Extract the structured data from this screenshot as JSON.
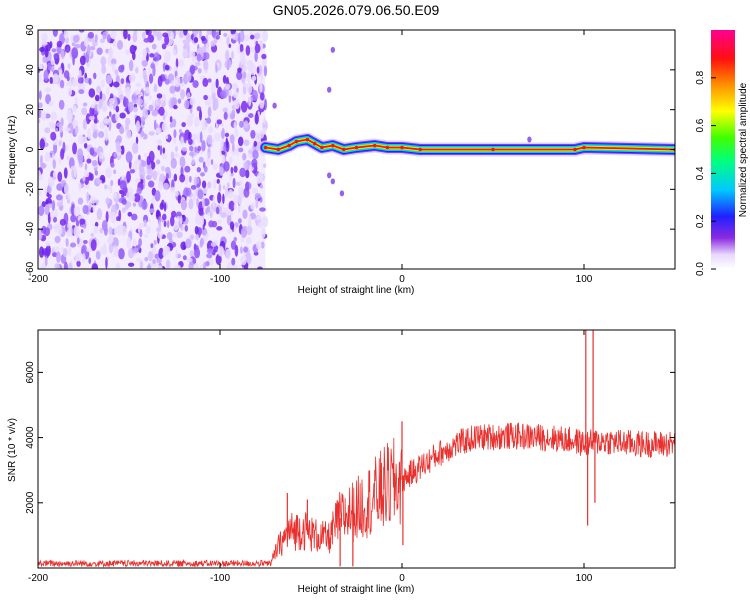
{
  "title": "GN05.2026.079.06.50.E09",
  "chart_data": [
    {
      "type": "heatmap",
      "xlabel": "Height of straight line (km)",
      "ylabel": "Frequency (Hz)",
      "xlim": [
        -200,
        150
      ],
      "ylim": [
        -60,
        60
      ],
      "xticks": [
        -200,
        -100,
        0,
        100
      ],
      "yticks": [
        -60,
        -40,
        -20,
        0,
        20,
        40,
        60
      ],
      "noise_region_x": [
        -200,
        -75
      ],
      "ridge_points": [
        {
          "x": -75,
          "y": 1
        },
        {
          "x": -68,
          "y": 0
        },
        {
          "x": -62,
          "y": 2
        },
        {
          "x": -58,
          "y": 4
        },
        {
          "x": -52,
          "y": 5
        },
        {
          "x": -48,
          "y": 3
        },
        {
          "x": -44,
          "y": 1
        },
        {
          "x": -38,
          "y": 2
        },
        {
          "x": -32,
          "y": 0
        },
        {
          "x": -25,
          "y": 1
        },
        {
          "x": -15,
          "y": 2
        },
        {
          "x": -8,
          "y": 1
        },
        {
          "x": 0,
          "y": 1
        },
        {
          "x": 10,
          "y": 0
        },
        {
          "x": 50,
          "y": 0
        },
        {
          "x": 95,
          "y": 0
        },
        {
          "x": 100,
          "y": 1
        },
        {
          "x": 150,
          "y": 0
        }
      ],
      "colorbar": {
        "label": "Normalized spectral amplitude",
        "ticks": [
          0.0,
          0.2,
          0.4,
          0.6,
          0.8
        ],
        "tick_labels": [
          "0.0",
          "0.2",
          "0.4",
          "0.6",
          "0.8"
        ],
        "range": [
          0,
          1
        ]
      }
    },
    {
      "type": "line",
      "xlabel": "Height of straight line (km)",
      "ylabel": "SNR (10 * v/v)",
      "xlim": [
        -200,
        150
      ],
      "ylim": [
        0,
        7300
      ],
      "xticks": [
        -200,
        -100,
        0,
        100
      ],
      "yticks": [
        2000,
        4000,
        6000
      ],
      "color": "#e8312e",
      "envelope": [
        {
          "x": -200,
          "y": 150
        },
        {
          "x": -150,
          "y": 150
        },
        {
          "x": -100,
          "y": 150
        },
        {
          "x": -72,
          "y": 160
        },
        {
          "x": -68,
          "y": 650
        },
        {
          "x": -62,
          "y": 1100
        },
        {
          "x": -55,
          "y": 1200
        },
        {
          "x": -48,
          "y": 1000
        },
        {
          "x": -40,
          "y": 900
        },
        {
          "x": -35,
          "y": 1500
        },
        {
          "x": -25,
          "y": 1800
        },
        {
          "x": -15,
          "y": 2200
        },
        {
          "x": -8,
          "y": 2500
        },
        {
          "x": 0,
          "y": 2700
        },
        {
          "x": 10,
          "y": 3100
        },
        {
          "x": 20,
          "y": 3500
        },
        {
          "x": 30,
          "y": 3800
        },
        {
          "x": 40,
          "y": 4000
        },
        {
          "x": 60,
          "y": 4050
        },
        {
          "x": 80,
          "y": 4000
        },
        {
          "x": 95,
          "y": 3900
        },
        {
          "x": 100,
          "y": 3800
        },
        {
          "x": 110,
          "y": 3900
        },
        {
          "x": 130,
          "y": 3800
        },
        {
          "x": 150,
          "y": 3800
        }
      ],
      "spikes": [
        {
          "x": -63,
          "y": 2300
        },
        {
          "x": -52,
          "y": 2100
        },
        {
          "x": -36,
          "y": 1900
        },
        {
          "x": -34,
          "y": 50
        },
        {
          "x": -27,
          "y": 50
        },
        {
          "x": -10,
          "y": 3100
        },
        {
          "x": 0,
          "y": 4500
        },
        {
          "x": 0.5,
          "y": 700
        },
        {
          "x": 101,
          "y": 7300
        },
        {
          "x": 102,
          "y": 1300
        },
        {
          "x": 105,
          "y": 7300
        },
        {
          "x": 106,
          "y": 2000
        }
      ]
    }
  ]
}
